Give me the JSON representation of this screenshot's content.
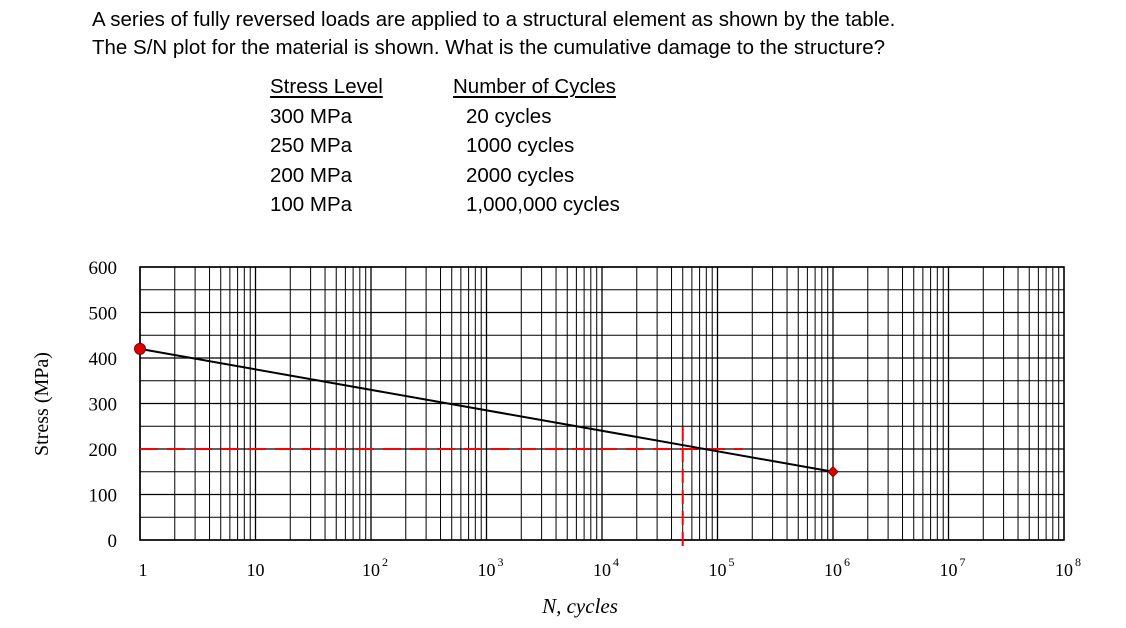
{
  "question": {
    "line1": "A series of fully reversed loads are applied to a structural element as shown by the table.",
    "line2": "The S/N plot for the material is shown.  What is the cumulative damage to the structure?"
  },
  "table": {
    "headers": [
      "Stress Level",
      "Number of Cycles"
    ],
    "rows": [
      [
        "300 MPa",
        "20 cycles"
      ],
      [
        "250 MPa",
        "1000 cycles"
      ],
      [
        "200 MPa",
        "2000 cycles"
      ],
      [
        "100 MPa",
        "1,000,000 cycles"
      ]
    ]
  },
  "chart_data": {
    "type": "line",
    "xlabel": "N, cycles",
    "ylabel": "Stress (MPa)",
    "xscale": "log",
    "xlim": [
      1,
      100000000
    ],
    "ylim": [
      0,
      600
    ],
    "x_tick_labels": [
      {
        "base": "1",
        "exp": ""
      },
      {
        "base": "10",
        "exp": ""
      },
      {
        "base": "10",
        "exp": "2"
      },
      {
        "base": "10",
        "exp": "3"
      },
      {
        "base": "10",
        "exp": "4"
      },
      {
        "base": "10",
        "exp": "5"
      },
      {
        "base": "10",
        "exp": "6"
      },
      {
        "base": "10",
        "exp": "7"
      },
      {
        "base": "10",
        "exp": "8"
      }
    ],
    "y_ticks": [
      600,
      500,
      400,
      300,
      200,
      100,
      0
    ],
    "grid": true,
    "series": [
      {
        "x": [
          1,
          1000000
        ],
        "y": [
          420,
          150
        ],
        "color": "#000000"
      }
    ],
    "endpoints": [
      {
        "x": 1,
        "y": 420,
        "marker": "circle",
        "color": "#e00000"
      },
      {
        "x": 1000000,
        "y": 150,
        "marker": "diamond",
        "color": "#e00000"
      }
    ],
    "guide_lines": {
      "stress": 200,
      "cycles": 50000,
      "color": "#ff0000",
      "style": "dashed"
    },
    "colors": {
      "grid": "#000000",
      "guide": "#ff0000",
      "marker": "#e00000"
    }
  }
}
